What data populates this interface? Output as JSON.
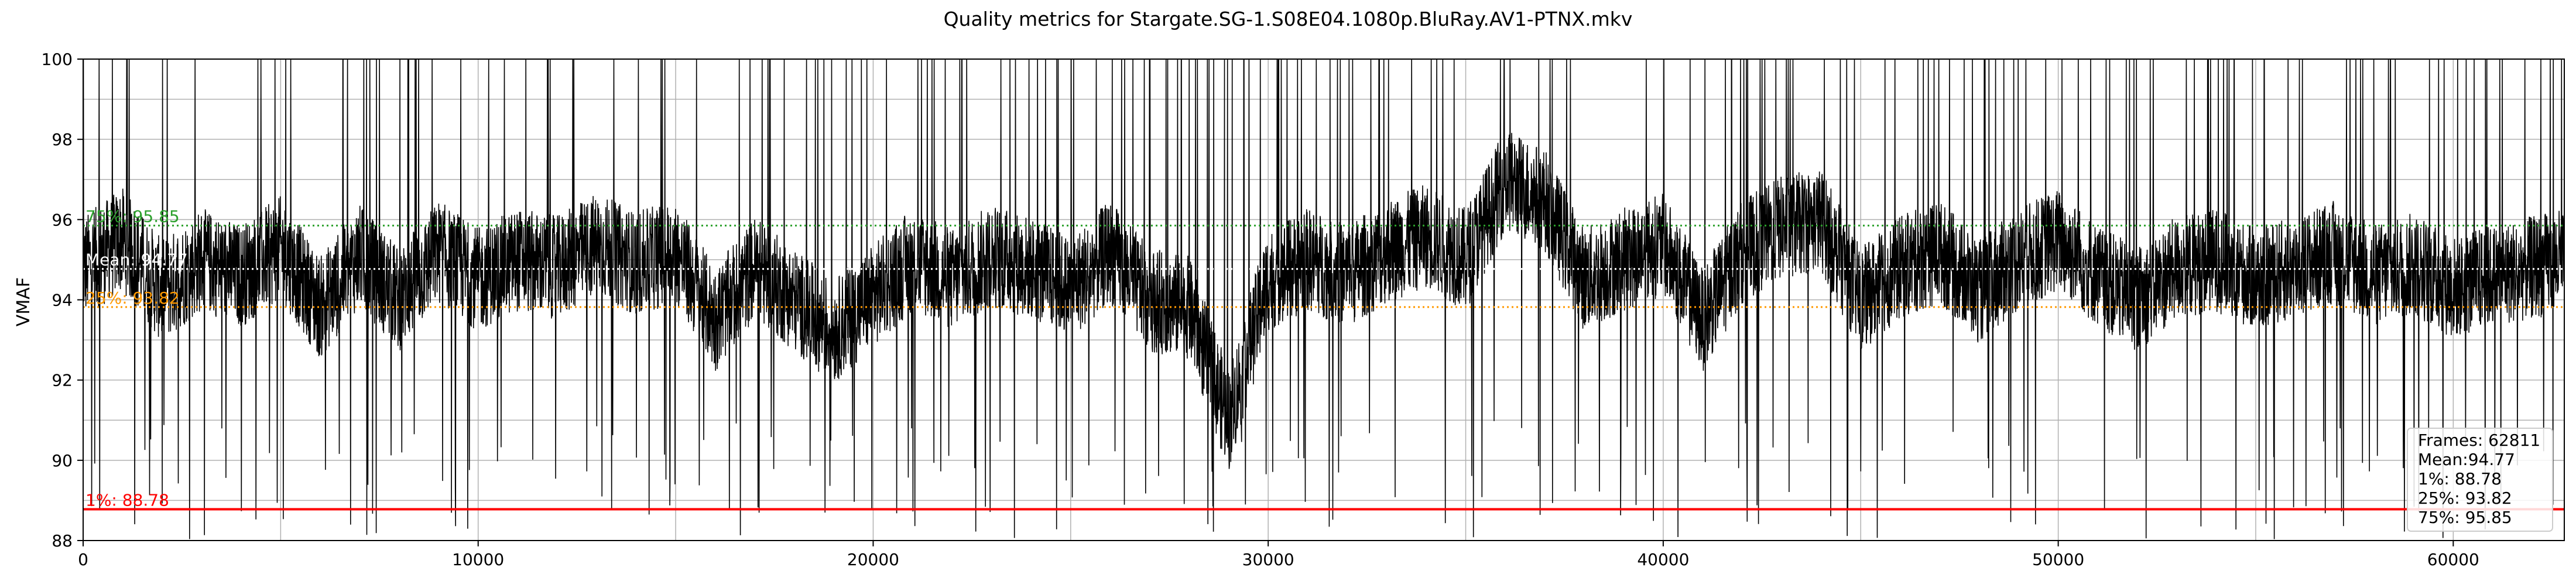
{
  "chart_data": {
    "type": "line",
    "title": "Quality metrics for Stargate.SG-1.S08E04.1080p.BluRay.AV1-PTNX.mkv",
    "xlabel": "",
    "ylabel": "VMAF",
    "xlim": [
      0,
      62811
    ],
    "ylim": [
      88,
      100
    ],
    "x_ticks": [
      0,
      10000,
      20000,
      30000,
      40000,
      50000,
      60000
    ],
    "x_tick_labels": [
      "0",
      "10000",
      "20000",
      "30000",
      "40000",
      "50000",
      "60000"
    ],
    "y_ticks": [
      88,
      90,
      92,
      94,
      96,
      98,
      100
    ],
    "y_tick_labels": [
      "88",
      "90",
      "92",
      "94",
      "96",
      "98",
      "100"
    ],
    "grid": true,
    "frames": 62811,
    "series": [
      {
        "color": "#000000",
        "x": [
          0,
          1000,
          2000,
          3000,
          4000,
          5000,
          6000,
          7000,
          8000,
          9000,
          10000,
          11000,
          12000,
          13000,
          14000,
          15000,
          16000,
          17000,
          18000,
          19000,
          20000,
          21000,
          22000,
          23000,
          24000,
          25000,
          26000,
          27000,
          28000,
          29000,
          30000,
          31000,
          32000,
          33000,
          34000,
          35000,
          36000,
          37000,
          38000,
          39000,
          40000,
          41000,
          42000,
          43000,
          44000,
          45000,
          46000,
          47000,
          48000,
          49000,
          50000,
          51000,
          52000,
          53000,
          54000,
          55000,
          56000,
          57000,
          58000,
          59000,
          60000,
          61000,
          62000,
          62811
        ],
        "y": [
          94.8,
          95.5,
          94.2,
          95.0,
          94.6,
          95.3,
          93.8,
          95.1,
          94.0,
          95.2,
          94.5,
          95.0,
          94.8,
          95.4,
          94.9,
          95.2,
          93.5,
          94.8,
          94.0,
          93.2,
          94.1,
          95.0,
          94.5,
          95.1,
          94.8,
          94.3,
          95.2,
          94.0,
          93.8,
          91.0,
          94.5,
          95.0,
          94.6,
          95.2,
          95.6,
          95.0,
          97.0,
          96.5,
          94.5,
          95.0,
          95.4,
          93.5,
          95.2,
          95.8,
          96.0,
          94.0,
          94.8,
          95.2,
          94.2,
          95.0,
          95.5,
          94.6,
          94.0,
          94.8,
          95.0,
          94.5,
          94.8,
          95.2,
          94.6,
          94.9,
          94.3,
          94.6,
          94.8,
          95.0
        ]
      }
    ],
    "stat_lines": [
      {
        "label": "75%: 95.85",
        "value": 95.85,
        "color": "#2ca02c",
        "style": "dotted"
      },
      {
        "label": "Mean: 94.77",
        "value": 94.77,
        "color": "#ffffff",
        "style": "dotted"
      },
      {
        "label": "25%: 93.82",
        "value": 93.82,
        "color": "#ff9900",
        "style": "dotted"
      },
      {
        "label": "1%: 88.78",
        "value": 88.78,
        "color": "#ff0000",
        "style": "solid"
      }
    ],
    "legend": {
      "placement": "bottom-right",
      "lines": [
        "Frames: 62811",
        "Mean:94.77",
        "1%: 88.78",
        "25%: 93.82",
        "75%: 95.85"
      ]
    }
  }
}
